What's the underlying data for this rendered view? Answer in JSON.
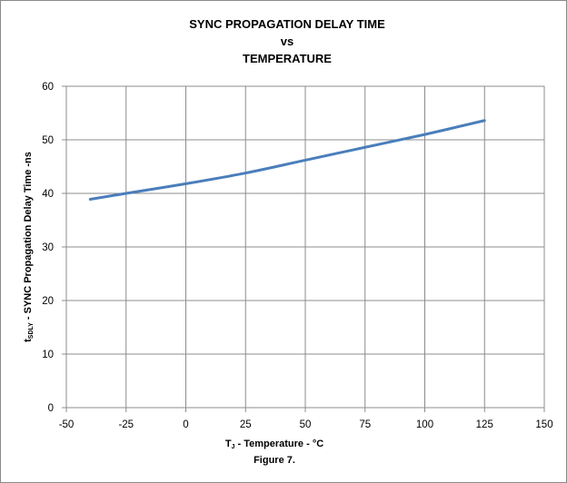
{
  "chart_data": {
    "type": "line",
    "title": [
      "SYNC PROPAGATION DELAY TIME",
      "vs",
      "TEMPERATURE"
    ],
    "xlabel": {
      "main": "T",
      "sub": "J",
      "rest": " - Temperature - °C"
    },
    "ylabel": {
      "main": "t",
      "sub": "SDLY",
      "rest": " - SYNC Propagation Delay Time -ns"
    },
    "caption": "Figure 7.",
    "xlim": [
      -50,
      150
    ],
    "ylim": [
      0,
      60
    ],
    "xticks": [
      -50,
      -25,
      0,
      25,
      50,
      75,
      100,
      125,
      150
    ],
    "yticks": [
      0,
      10,
      20,
      30,
      40,
      50,
      60
    ],
    "grid": true,
    "series": [
      {
        "color": "#4a7ebb",
        "x": [
          -40,
          -25,
          0,
          25,
          50,
          75,
          100,
          125
        ],
        "y": [
          38.9,
          40.0,
          41.8,
          43.8,
          46.2,
          48.6,
          51.0,
          53.6
        ]
      }
    ]
  }
}
